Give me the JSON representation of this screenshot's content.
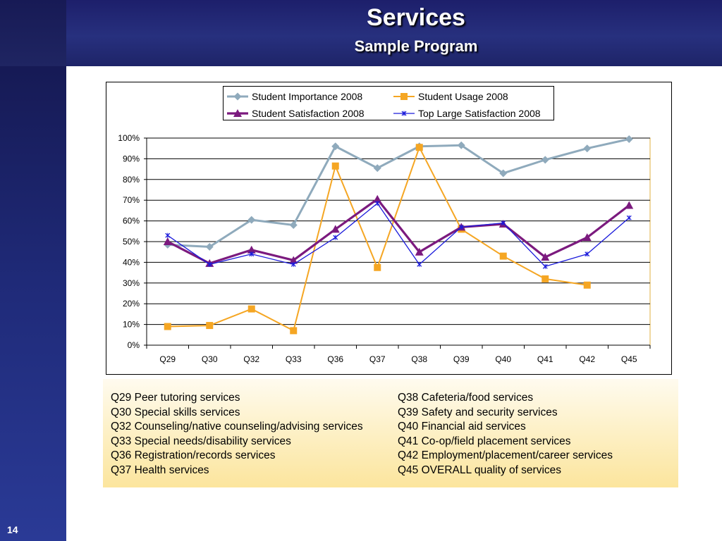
{
  "slide": {
    "title": "Services",
    "subtitle": "Sample Program",
    "page_number": "14"
  },
  "colors": {
    "header_dark": "#1d1f6b",
    "sidebar": "#1f2a78",
    "notes_gradient_top": "#fffbef",
    "notes_gradient_bottom": "#fce59d",
    "plot_border": "#e0b040"
  },
  "chart_data": {
    "type": "line",
    "categories": [
      "Q29",
      "Q30",
      "Q32",
      "Q33",
      "Q36",
      "Q37",
      "Q38",
      "Q39",
      "Q40",
      "Q41",
      "Q42",
      "Q45"
    ],
    "y_ticks": [
      "0%",
      "10%",
      "20%",
      "30%",
      "40%",
      "50%",
      "60%",
      "70%",
      "80%",
      "90%",
      "100%"
    ],
    "ylim": [
      0,
      100
    ],
    "y_unit": "%",
    "grid": true,
    "legend_position": "top-center",
    "series": [
      {
        "name": "Student Importance 2008",
        "color": "#8faabc",
        "marker": "diamond",
        "values": [
          48.5,
          47.5,
          60.5,
          58,
          96,
          85.5,
          96,
          96.5,
          83,
          89.5,
          95,
          99.5
        ]
      },
      {
        "name": "Student Usage 2008",
        "color": "#f5a623",
        "marker": "square",
        "values": [
          9,
          9.5,
          17.5,
          7,
          86.5,
          37.5,
          95.5,
          56,
          43,
          32,
          29,
          null
        ]
      },
      {
        "name": "Student Satisfaction 2008",
        "color": "#7b1a7e",
        "marker": "triangle",
        "values": [
          50,
          39.5,
          46,
          41,
          56,
          70.5,
          45,
          57,
          58.5,
          42.5,
          52,
          67.5
        ]
      },
      {
        "name": "Top Large Satisfaction 2008",
        "color": "#1a1adb",
        "marker": "x",
        "values": [
          53,
          39,
          44,
          39,
          52,
          68.5,
          39,
          57,
          59,
          38,
          44,
          61.5
        ]
      }
    ]
  },
  "notes": {
    "left": [
      "Q29 Peer tutoring services",
      "Q30 Special skills services",
      "Q32 Counseling/native counseling/advising services",
      "Q33 Special needs/disability services",
      "Q36 Registration/records services",
      "Q37 Health services"
    ],
    "right": [
      "Q38 Cafeteria/food services",
      "Q39 Safety and security services",
      "Q40 Financial aid services",
      "Q41 Co-op/field placement services",
      "Q42 Employment/placement/career services",
      "Q45 OVERALL quality of services"
    ]
  }
}
